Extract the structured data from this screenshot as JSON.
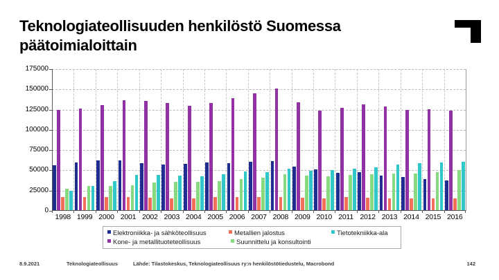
{
  "slide": {
    "title": "Teknologiateollisuuden henkilöstö Suomessa päätoimialoittain",
    "footer": {
      "date": "8.9.2021",
      "org": "Teknologiateollisuus",
      "source": "Lähde: Tilastokeskus, Teknologiateollisuus ry:n henkilöstötiedustelu, Macrobond",
      "page": "142"
    }
  },
  "chart_data": {
    "type": "bar",
    "title": "",
    "xlabel": "",
    "ylabel": "",
    "ylim": [
      0,
      175000
    ],
    "ytick_step": 25000,
    "grid": true,
    "legend_position": "bottom",
    "categories": [
      "1998",
      "1999",
      "2000",
      "2001",
      "2002",
      "2003",
      "2004",
      "2005",
      "2006",
      "2007",
      "2008",
      "2009",
      "2010",
      "2011",
      "2012",
      "2013",
      "2014",
      "2015",
      "2016"
    ],
    "series": [
      {
        "name": "Elektroniikka- ja sähköteollisuus",
        "color": "#1e2d8f",
        "values": [
          56000,
          60000,
          62500,
          62500,
          59000,
          57000,
          58000,
          60000,
          59000,
          61000,
          61500,
          55000,
          51000,
          47000,
          48000,
          43500,
          41500,
          39500,
          37500
        ]
      },
      {
        "name": "Kone- ja metallituoteteollisuus",
        "color": "#9230a5",
        "values": [
          125000,
          126000,
          131000,
          136500,
          136000,
          133500,
          129500,
          133500,
          139000,
          145500,
          151500,
          134000,
          124000,
          127500,
          131500,
          128500,
          125000,
          125500,
          123500
        ]
      },
      {
        "name": "Metallien jalostus",
        "color": "#f2705a",
        "values": [
          17500,
          17500,
          17000,
          17000,
          16000,
          15000,
          15500,
          17000,
          17000,
          17000,
          17500,
          16500,
          15500,
          17500,
          16000,
          15500,
          15500,
          15000,
          15500
        ]
      },
      {
        "name": "Suunnittelu ja konsultointi",
        "color": "#87da80",
        "values": [
          27000,
          31000,
          30500,
          32000,
          35000,
          36000,
          35500,
          37000,
          39000,
          41000,
          45000,
          43500,
          42500,
          44500,
          45000,
          46000,
          46000,
          48000,
          50000
        ]
      },
      {
        "name": "Tietotekniikka-ala",
        "color": "#2fc7c9",
        "values": [
          25000,
          31000,
          36500,
          44000,
          44500,
          43500,
          43000,
          45500,
          49000,
          48000,
          52000,
          49500,
          50500,
          52000,
          54000,
          57500,
          58500,
          59500,
          60500
        ]
      }
    ],
    "legend_rows": [
      [
        "Elektroniikka- ja sähköteollisuus",
        "Metallien jalostus",
        "Tietotekniikka-ala"
      ],
      [
        "Kone- ja metallituoteteollisuus",
        "Suunnittelu ja konsultointi"
      ]
    ]
  }
}
